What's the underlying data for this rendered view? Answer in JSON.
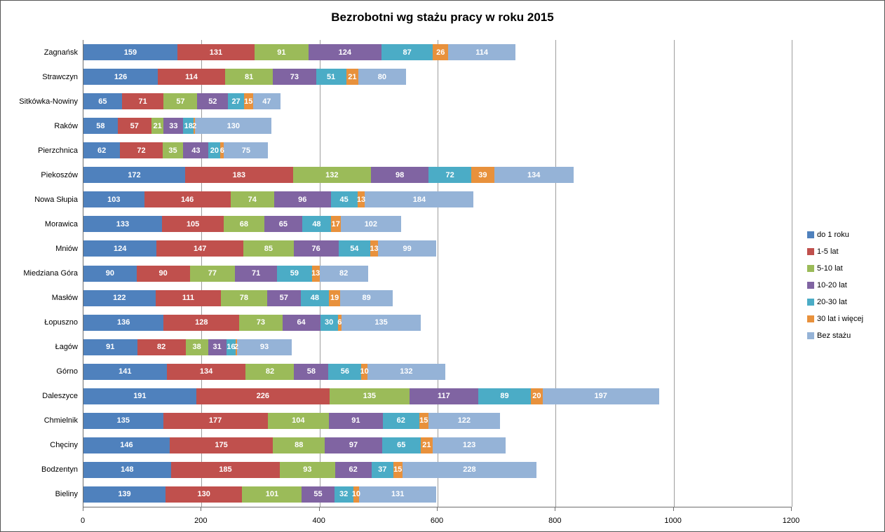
{
  "chart_data": {
    "type": "bar",
    "stacked": true,
    "orientation": "horizontal",
    "title": "Bezrobotni wg stażu pracy w roku 2015",
    "categories": [
      "Zagnańsk",
      "Strawczyn",
      "Sitkówka-Nowiny",
      "Raków",
      "Pierzchnica",
      "Piekoszów",
      "Nowa Słupia",
      "Morawica",
      "Mniów",
      "Miedziana Góra",
      "Masłów",
      "Łopuszno",
      "Łagów",
      "Górno",
      "Daleszyce",
      "Chmielnik",
      "Chęciny",
      "Bodzentyn",
      "Bieliny"
    ],
    "series": [
      {
        "name": "do 1 roku",
        "color": "#4F81BD",
        "values": [
          159,
          126,
          65,
          58,
          62,
          172,
          103,
          133,
          124,
          90,
          122,
          136,
          91,
          141,
          191,
          135,
          146,
          148,
          139
        ]
      },
      {
        "name": "1-5 lat",
        "color": "#C0504D",
        "values": [
          131,
          114,
          71,
          57,
          72,
          183,
          146,
          105,
          147,
          90,
          111,
          128,
          82,
          134,
          226,
          177,
          175,
          185,
          130
        ]
      },
      {
        "name": "5-10 lat",
        "color": "#9BBB59",
        "values": [
          91,
          81,
          57,
          21,
          35,
          132,
          74,
          68,
          85,
          77,
          78,
          73,
          38,
          82,
          135,
          104,
          88,
          93,
          101
        ]
      },
      {
        "name": "10-20 lat",
        "color": "#8064A2",
        "values": [
          124,
          73,
          52,
          33,
          43,
          98,
          96,
          65,
          76,
          71,
          57,
          64,
          31,
          58,
          117,
          91,
          97,
          62,
          55
        ]
      },
      {
        "name": "20-30 lat",
        "color": "#4BACC6",
        "values": [
          87,
          51,
          27,
          18,
          20,
          72,
          45,
          48,
          54,
          59,
          48,
          30,
          16,
          56,
          89,
          62,
          65,
          37,
          32
        ]
      },
      {
        "name": "30 lat i więcej",
        "color": "#E8913C",
        "values": [
          26,
          21,
          15,
          2,
          6,
          39,
          13,
          17,
          13,
          13,
          19,
          6,
          2,
          10,
          20,
          15,
          21,
          15,
          10
        ]
      },
      {
        "name": "Bez stażu",
        "color": "#95B3D7",
        "values": [
          114,
          80,
          47,
          130,
          75,
          134,
          184,
          102,
          99,
          82,
          89,
          135,
          93,
          132,
          197,
          122,
          123,
          228,
          131
        ]
      }
    ],
    "x_axis": {
      "min": 0,
      "max": 1200,
      "tick_interval": 200,
      "ticks": [
        0,
        200,
        400,
        600,
        800,
        1000,
        1200
      ],
      "tick_labels": [
        "0",
        "200",
        "400",
        "600",
        "800",
        "1000",
        "1200"
      ]
    },
    "legend_position": "right",
    "grid": true,
    "value_labels": true,
    "style": {
      "gridline_color": "#9d9d9d",
      "axis_color": "#6e6e6e",
      "value_label_color": "#ffffff"
    }
  }
}
